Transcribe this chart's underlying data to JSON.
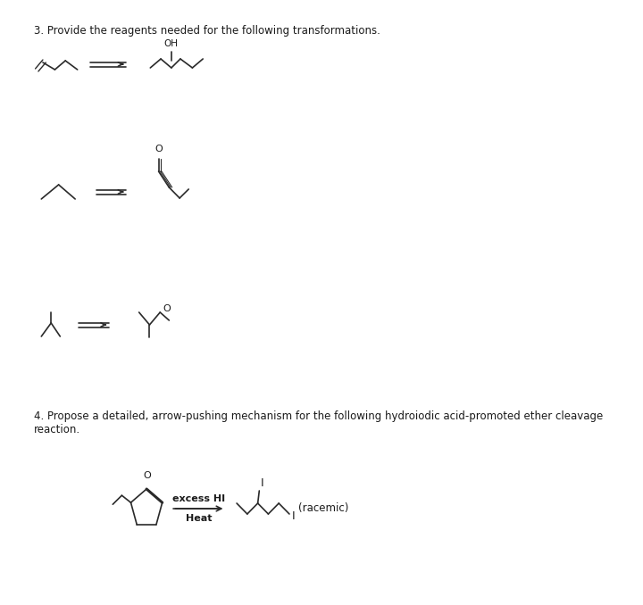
{
  "bg_color": "#ffffff",
  "text_color": "#1a1a1a",
  "line_color": "#2a2a2a",
  "title3": "3. Provide the reagents needed for the following transformations.",
  "title4_line1": "4. Propose a detailed, arrow-pushing mechanism for the following hydroiodic acid-promoted ether cleavage",
  "title4_line2": "reaction.",
  "reaction4_label1": "excess HI",
  "reaction4_label2": "Heat",
  "racemic_label": "(racemic)",
  "oh_label": "OH",
  "o_label": "O",
  "fontsize_title": 8.5,
  "fontsize_label": 8.0
}
